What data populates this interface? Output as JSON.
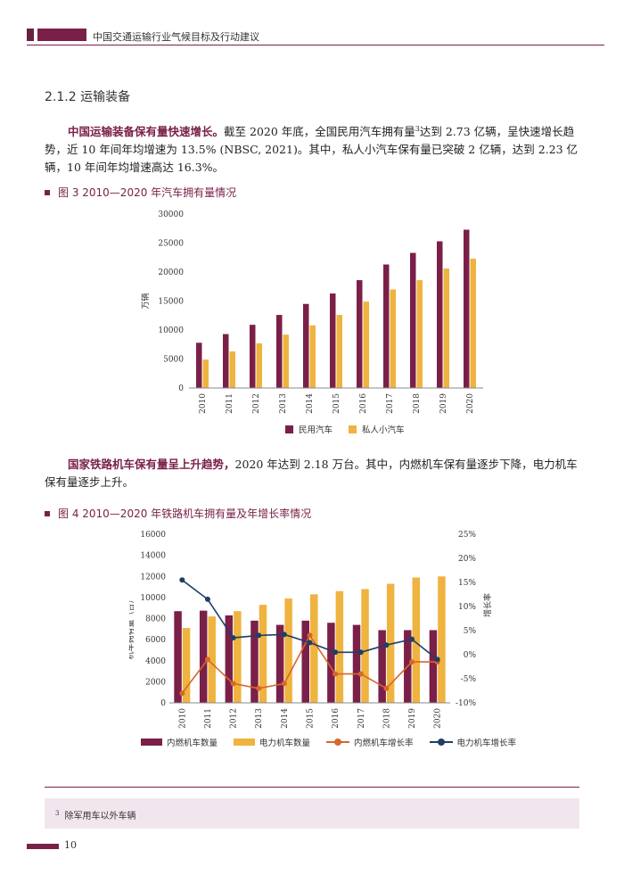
{
  "header": {
    "title": "中国交通运输行业气候目标及行动建议"
  },
  "section": {
    "title": "2.1.2  运输装备"
  },
  "para1": {
    "lead": "中国运输装备保有量快速增长。",
    "body_a": "截至 2020 年底，全国民用汽车拥有量",
    "footnote_ref": "3",
    "body_b": "达到 2.73 亿辆，呈快速增长趋势，近 10 年间年均增速为 13.5% (NBSC, 2021)。其中，私人小汽车保有量已突破 2 亿辆，达到 2.23 亿辆，10 年间年均增速高达 16.3%。"
  },
  "fig3": {
    "caption": "图 3  2010—2020 年汽车拥有量情况"
  },
  "para2": {
    "lead": "国家铁路机车保有量呈上升趋势，",
    "body": "2020 年达到 2.18 万台。其中，内燃机车保有量逐步下降，电力机车保有量逐步上升。"
  },
  "fig4": {
    "caption": "图 4  2010—2020 年铁路机车拥有量及年增长率情况"
  },
  "footnote": {
    "num": "3",
    "text": "除军用车以外车辆"
  },
  "page_number": "10",
  "colors": {
    "maroon": "#7a2048",
    "gold": "#efb33f",
    "orange": "#d9662a",
    "navy": "#1f3f66"
  },
  "chart_data": [
    {
      "type": "bar",
      "categories": [
        "2010",
        "2011",
        "2012",
        "2013",
        "2014",
        "2015",
        "2016",
        "2017",
        "2018",
        "2019",
        "2020"
      ],
      "series": [
        {
          "name": "民用汽车",
          "color": "#7a2048",
          "values": [
            7800,
            9300,
            10900,
            12600,
            14500,
            16300,
            18600,
            21300,
            23300,
            25300,
            27300
          ]
        },
        {
          "name": "私人小汽车",
          "color": "#efb33f",
          "values": [
            4900,
            6300,
            7700,
            9200,
            10800,
            12600,
            14900,
            17000,
            18600,
            20600,
            22300
          ]
        }
      ],
      "title": "",
      "xlabel": "",
      "ylabel": "万辆",
      "ylim": [
        0,
        30000
      ],
      "yticks": [
        "0",
        "5000",
        "10000",
        "15000",
        "20000",
        "25000",
        "30000"
      ],
      "grid": false,
      "legend": "bottom"
    },
    {
      "type": "bar",
      "categories": [
        "2010",
        "2011",
        "2012",
        "2013",
        "2014",
        "2015",
        "2016",
        "2017",
        "2018",
        "2019",
        "2020"
      ],
      "series": [
        {
          "name": "内燃机车数量",
          "kind": "bar",
          "axis": "left",
          "color": "#7a2048",
          "values": [
            8700,
            8750,
            8300,
            7800,
            7400,
            7800,
            7600,
            7400,
            6900,
            6900,
            6900
          ]
        },
        {
          "name": "电力机车数量",
          "kind": "bar",
          "axis": "left",
          "color": "#efb33f",
          "values": [
            7100,
            8200,
            8700,
            9300,
            9900,
            10300,
            10600,
            10800,
            11300,
            11900,
            12000
          ]
        },
        {
          "name": "内燃机车增长率",
          "kind": "line",
          "axis": "right",
          "color": "#d9662a",
          "values": [
            -8,
            -1,
            -6,
            -7,
            -6,
            4,
            -4,
            -4,
            -7,
            -1.5,
            -1.5
          ]
        },
        {
          "name": "电力机车增长率",
          "kind": "line",
          "axis": "right",
          "color": "#1f3f66",
          "values": [
            15.5,
            11.5,
            3.5,
            4,
            4.2,
            2.5,
            0.5,
            0.5,
            2,
            3.2,
            -1
          ]
        }
      ],
      "title": "",
      "xlabel": "",
      "ylabel": "机车拥有量（台）",
      "y2label": "增长率",
      "ylim": [
        0,
        16000
      ],
      "y2lim": [
        -10,
        25
      ],
      "yticks": [
        "0",
        "2000",
        "4000",
        "6000",
        "8000",
        "10000",
        "12000",
        "14000",
        "16000"
      ],
      "y2ticks": [
        "-10%",
        "-5%",
        "0%",
        "5%",
        "10%",
        "15%",
        "20%",
        "25%"
      ],
      "grid": false,
      "legend": "bottom"
    }
  ]
}
